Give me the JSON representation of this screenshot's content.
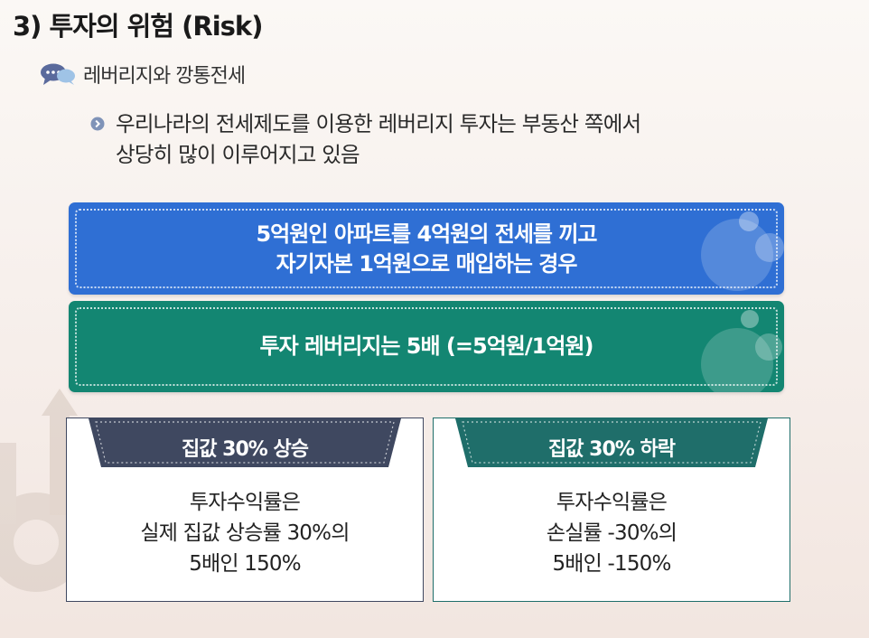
{
  "title": "3) 투자의 위험 (Risk)",
  "subtitle": {
    "icon": "speech-bubbles-icon",
    "label": "레버리지와 깡통전세"
  },
  "bullet": {
    "icon": "chevron-circle-icon",
    "lines": [
      "우리나라의 전세제도를 이용한 레버리지 투자는 부동산 쪽에서",
      "상당히 많이 이루어지고 있음"
    ]
  },
  "panels": [
    {
      "color": "#2f6fd4",
      "lines": [
        "5억원인 아파트를 4억원의 전세를 끼고",
        "자기자본 1억원으로 매입하는 경우"
      ]
    },
    {
      "color": "#138672",
      "lines": [
        "투자 레버리지는 5배 (=5억원/1억원)"
      ]
    }
  ],
  "cards": [
    {
      "header": "집값 30% 상승",
      "header_color": "#3f4860",
      "lines": [
        "투자수익률은",
        "실제 집값 상승률 30%의",
        "5배인 150%"
      ]
    },
    {
      "header": "집값 30% 하락",
      "header_color": "#1f6e6a",
      "lines": [
        "투자수익률은",
        "손실률 -30%의",
        "5배인 -150%"
      ]
    }
  ]
}
